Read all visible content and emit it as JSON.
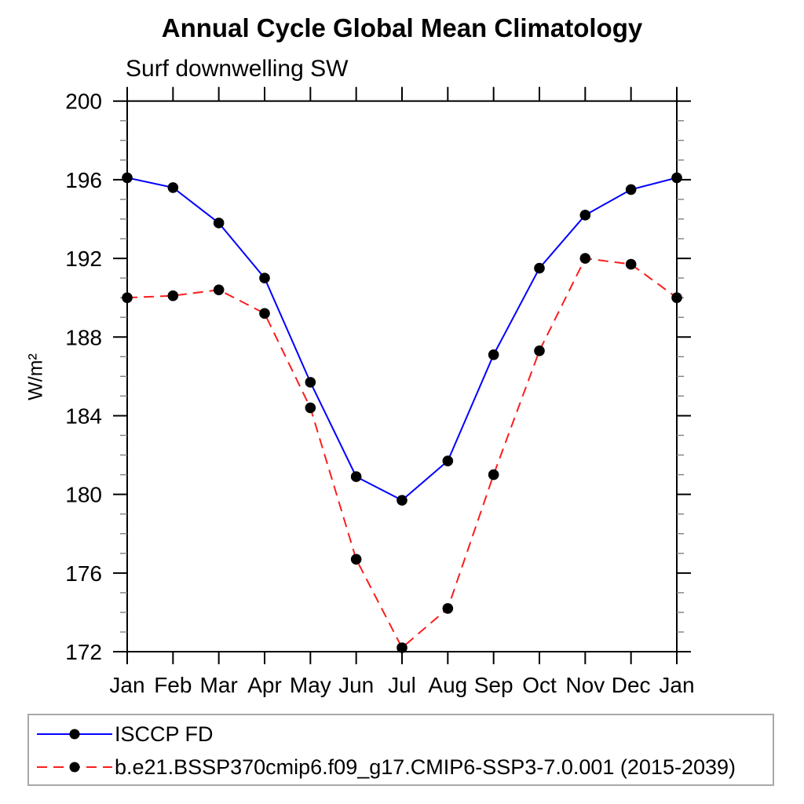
{
  "chart_data": {
    "type": "line",
    "title": "Annual Cycle Global Mean Climatology",
    "subtitle": "Surf downwelling SW",
    "ylabel": "W/m²",
    "xlabel": "",
    "categories": [
      "Jan",
      "Feb",
      "Mar",
      "Apr",
      "May",
      "Jun",
      "Jul",
      "Aug",
      "Sep",
      "Oct",
      "Nov",
      "Dec",
      "Jan"
    ],
    "ylim": [
      172,
      200
    ],
    "yticks_major": [
      172,
      176,
      180,
      184,
      188,
      192,
      196,
      200
    ],
    "ytick_minor_step": 1,
    "grid": false,
    "frame_color": "#000000",
    "minor_tick_color": "#808080",
    "series": [
      {
        "name": "ISCCP FD",
        "color": "#0000ff",
        "style": "solid",
        "marker": "circle",
        "marker_color": "#000000",
        "values": [
          196.1,
          195.6,
          193.8,
          191.0,
          185.7,
          180.9,
          179.7,
          181.7,
          187.1,
          191.5,
          194.2,
          195.5,
          196.1
        ]
      },
      {
        "name": "b.e21.BSSP370cmip6.f09_g17.CMIP6-SSP3-7.0.001 (2015-2039)",
        "color": "#fb1d1d",
        "style": "dashed",
        "marker": "circle",
        "marker_color": "#000000",
        "values": [
          190.0,
          190.1,
          190.4,
          189.2,
          184.4,
          176.7,
          172.2,
          174.2,
          181.0,
          187.3,
          192.0,
          191.7,
          190.0
        ]
      }
    ],
    "legend": {
      "position": "bottom-left",
      "border_color": "#a8a8a8"
    }
  }
}
